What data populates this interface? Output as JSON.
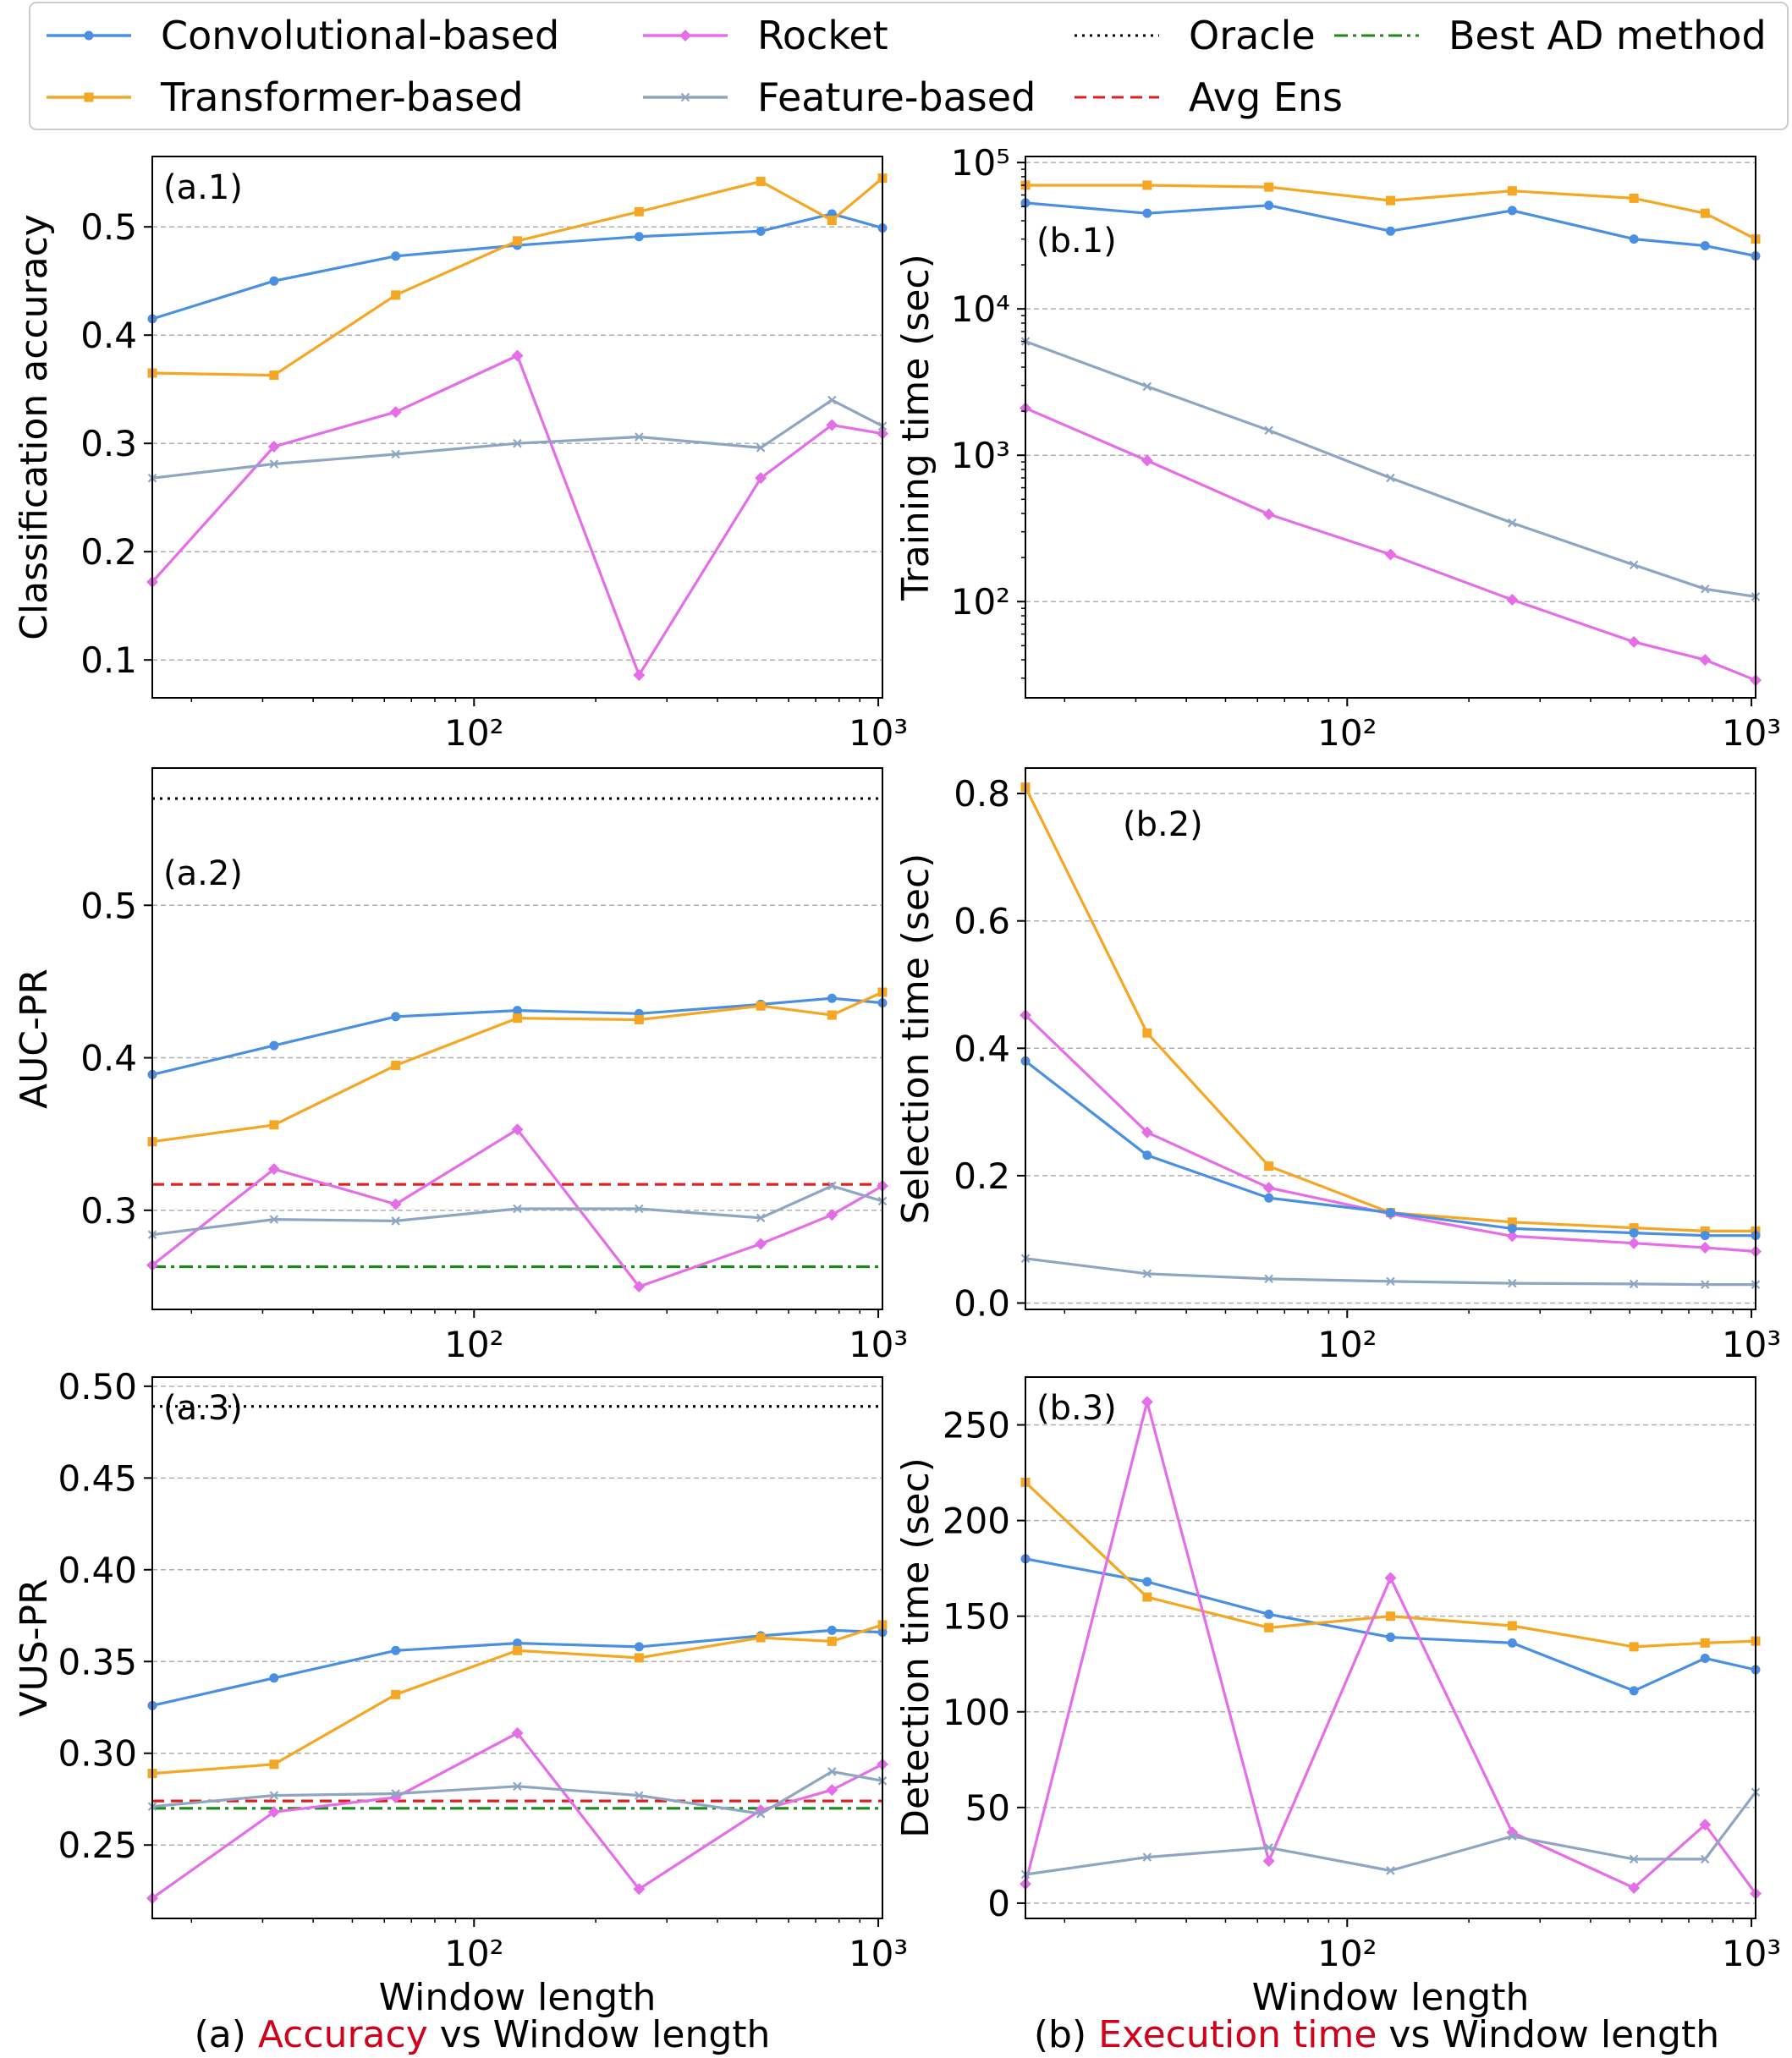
{
  "colors": {
    "conv": "#4a90e2",
    "trans": "#f5a623",
    "rocket": "#e56ee8",
    "feature": "#8ea6c2",
    "oracle": "#000000",
    "best": "#1a8a1a",
    "avg": "#e02020",
    "caption_accent": "#d0021b",
    "grid": "#b0b0b0"
  },
  "legend": {
    "placement": "top",
    "entries": [
      {
        "key": "conv",
        "label": "Convolutional-based",
        "marker": "circle",
        "style": "solid"
      },
      {
        "key": "trans",
        "label": "Transformer-based",
        "marker": "square",
        "style": "solid"
      },
      {
        "key": "rocket",
        "label": "Rocket",
        "marker": "diamond",
        "style": "solid"
      },
      {
        "key": "feature",
        "label": "Feature-based",
        "marker": "x",
        "style": "solid"
      },
      {
        "key": "oracle",
        "label": "Oracle",
        "marker": "",
        "style": "dotted"
      },
      {
        "key": "avg",
        "label": "Avg Ens",
        "marker": "",
        "style": "dashed"
      },
      {
        "key": "best",
        "label": "Best AD method",
        "marker": "",
        "style": "dashdot"
      }
    ]
  },
  "captions": {
    "a_prefix": "(a) ",
    "a_accent": "Accuracy",
    "a_suffix": " vs Window length",
    "b_prefix": "(b) ",
    "b_accent": "Execution time",
    "b_suffix": " vs Window length"
  },
  "chart_data": [
    {
      "id": "a1",
      "panel_label": "(a.1)",
      "type": "line",
      "xscale": "log",
      "yscale": "linear",
      "x": [
        16,
        32,
        64,
        128,
        256,
        512,
        768,
        1024
      ],
      "xlim": [
        16,
        1024
      ],
      "ylim": [
        0.065,
        0.565
      ],
      "xticks": [
        100,
        1000
      ],
      "xticklabels": [
        "10²",
        "10³"
      ],
      "yticks": [
        0.1,
        0.2,
        0.3,
        0.4,
        0.5
      ],
      "yticklabels": [
        "0.1",
        "0.2",
        "0.3",
        "0.4",
        "0.5"
      ],
      "xlabel": "",
      "ylabel": "Classification accuracy",
      "series": [
        {
          "key": "conv",
          "name": "Convolutional-based",
          "values": [
            0.415,
            0.45,
            0.473,
            0.483,
            0.491,
            0.496,
            0.512,
            0.499
          ]
        },
        {
          "key": "trans",
          "name": "Transformer-based",
          "values": [
            0.365,
            0.363,
            0.437,
            0.487,
            0.514,
            0.542,
            0.506,
            0.545
          ]
        },
        {
          "key": "rocket",
          "name": "Rocket",
          "values": [
            0.172,
            0.297,
            0.329,
            0.381,
            0.086,
            0.268,
            0.317,
            0.309
          ]
        },
        {
          "key": "feature",
          "name": "Feature-based",
          "values": [
            0.268,
            0.281,
            0.29,
            0.3,
            0.306,
            0.296,
            0.34,
            0.316
          ]
        }
      ],
      "hlines": []
    },
    {
      "id": "b1",
      "panel_label": "(b.1)",
      "type": "line",
      "xscale": "log",
      "yscale": "log",
      "x": [
        16,
        32,
        64,
        128,
        256,
        512,
        768,
        1024
      ],
      "xlim": [
        16,
        1024
      ],
      "ylim": [
        22,
        110000
      ],
      "xticks": [
        100,
        1000
      ],
      "xticklabels": [
        "10²",
        "10³"
      ],
      "yticks": [
        100,
        1000,
        10000,
        100000
      ],
      "yticklabels": [
        "10²",
        "10³",
        "10⁴",
        "10⁵"
      ],
      "xlabel": "",
      "ylabel": "Training time (sec)",
      "series": [
        {
          "key": "conv",
          "name": "Convolutional-based",
          "values": [
            53000,
            45000,
            51000,
            34000,
            47000,
            30000,
            27000,
            23000
          ]
        },
        {
          "key": "trans",
          "name": "Transformer-based",
          "values": [
            70000,
            70000,
            68000,
            55000,
            64000,
            57000,
            45000,
            30000
          ]
        },
        {
          "key": "rocket",
          "name": "Rocket",
          "values": [
            2100,
            920,
            395,
            210,
            103,
            53,
            40,
            29
          ]
        },
        {
          "key": "feature",
          "name": "Feature-based",
          "values": [
            6000,
            2950,
            1480,
            700,
            345,
            178,
            122,
            108
          ]
        }
      ],
      "hlines": []
    },
    {
      "id": "a2",
      "panel_label": "(a.2)",
      "type": "line",
      "xscale": "log",
      "yscale": "linear",
      "x": [
        16,
        32,
        64,
        128,
        256,
        512,
        768,
        1024
      ],
      "xlim": [
        16,
        1024
      ],
      "ylim": [
        0.235,
        0.59
      ],
      "xticks": [
        100,
        1000
      ],
      "xticklabels": [
        "10²",
        "10³"
      ],
      "yticks": [
        0.3,
        0.4,
        0.5
      ],
      "yticklabels": [
        "0.3",
        "0.4",
        "0.5"
      ],
      "xlabel": "",
      "ylabel": "AUC-PR",
      "series": [
        {
          "key": "conv",
          "name": "Convolutional-based",
          "values": [
            0.389,
            0.408,
            0.427,
            0.431,
            0.429,
            0.435,
            0.439,
            0.436
          ]
        },
        {
          "key": "trans",
          "name": "Transformer-based",
          "values": [
            0.345,
            0.356,
            0.395,
            0.426,
            0.425,
            0.434,
            0.428,
            0.443
          ]
        },
        {
          "key": "rocket",
          "name": "Rocket",
          "values": [
            0.264,
            0.327,
            0.304,
            0.353,
            0.25,
            0.278,
            0.297,
            0.316
          ]
        },
        {
          "key": "feature",
          "name": "Feature-based",
          "values": [
            0.284,
            0.294,
            0.293,
            0.301,
            0.301,
            0.295,
            0.316,
            0.306
          ]
        }
      ],
      "hlines": [
        {
          "key": "oracle",
          "name": "Oracle",
          "value": 0.57
        },
        {
          "key": "avg",
          "name": "Avg Ens",
          "value": 0.317
        },
        {
          "key": "best",
          "name": "Best AD method",
          "value": 0.263
        }
      ]
    },
    {
      "id": "b2",
      "panel_label": "(b.2)",
      "type": "line",
      "xscale": "log",
      "yscale": "linear",
      "x": [
        16,
        32,
        64,
        128,
        256,
        512,
        768,
        1024
      ],
      "xlim": [
        16,
        1024
      ],
      "ylim": [
        -0.01,
        0.84
      ],
      "xticks": [
        100,
        1000
      ],
      "xticklabels": [
        "10²",
        "10³"
      ],
      "yticks": [
        0.0,
        0.2,
        0.4,
        0.6,
        0.8
      ],
      "yticklabels": [
        "0.0",
        "0.2",
        "0.4",
        "0.6",
        "0.8"
      ],
      "xlabel": "",
      "ylabel": "Selection time (sec)",
      "series": [
        {
          "key": "trans",
          "name": "Transformer-based",
          "values": [
            0.81,
            0.424,
            0.215,
            0.142,
            0.127,
            0.118,
            0.113,
            0.113
          ]
        },
        {
          "key": "rocket",
          "name": "Rocket",
          "values": [
            0.452,
            0.268,
            0.181,
            0.14,
            0.105,
            0.094,
            0.087,
            0.081
          ]
        },
        {
          "key": "conv",
          "name": "Convolutional-based",
          "values": [
            0.38,
            0.232,
            0.165,
            0.142,
            0.117,
            0.11,
            0.106,
            0.106
          ]
        },
        {
          "key": "feature",
          "name": "Feature-based",
          "values": [
            0.07,
            0.046,
            0.038,
            0.034,
            0.031,
            0.03,
            0.029,
            0.029
          ]
        }
      ],
      "hlines": []
    },
    {
      "id": "a3",
      "panel_label": "(a.3)",
      "type": "line",
      "xscale": "log",
      "yscale": "linear",
      "x": [
        16,
        32,
        64,
        128,
        256,
        512,
        768,
        1024
      ],
      "xlim": [
        16,
        1024
      ],
      "ylim": [
        0.21,
        0.505
      ],
      "xticks": [
        100,
        1000
      ],
      "xticklabels": [
        "10²",
        "10³"
      ],
      "yticks": [
        0.25,
        0.3,
        0.35,
        0.4,
        0.45,
        0.5
      ],
      "yticklabels": [
        "0.25",
        "0.30",
        "0.35",
        "0.40",
        "0.45",
        "0.50"
      ],
      "xlabel": "Window length",
      "ylabel": "VUS-PR",
      "series": [
        {
          "key": "conv",
          "name": "Convolutional-based",
          "values": [
            0.326,
            0.341,
            0.356,
            0.36,
            0.358,
            0.364,
            0.367,
            0.366
          ]
        },
        {
          "key": "trans",
          "name": "Transformer-based",
          "values": [
            0.289,
            0.294,
            0.332,
            0.356,
            0.352,
            0.363,
            0.361,
            0.37
          ]
        },
        {
          "key": "rocket",
          "name": "Rocket",
          "values": [
            0.221,
            0.268,
            0.276,
            0.311,
            0.226,
            0.269,
            0.28,
            0.294
          ]
        },
        {
          "key": "feature",
          "name": "Feature-based",
          "values": [
            0.271,
            0.277,
            0.278,
            0.282,
            0.277,
            0.267,
            0.29,
            0.285
          ]
        }
      ],
      "hlines": [
        {
          "key": "oracle",
          "name": "Oracle",
          "value": 0.489
        },
        {
          "key": "avg",
          "name": "Avg Ens",
          "value": 0.274
        },
        {
          "key": "best",
          "name": "Best AD method",
          "value": 0.27
        }
      ]
    },
    {
      "id": "b3",
      "panel_label": "(b.3)",
      "type": "line",
      "xscale": "log",
      "yscale": "linear",
      "x": [
        16,
        32,
        64,
        128,
        256,
        512,
        768,
        1024
      ],
      "xlim": [
        16,
        1024
      ],
      "ylim": [
        -8,
        275
      ],
      "xticks": [
        100,
        1000
      ],
      "xticklabels": [
        "10²",
        "10³"
      ],
      "yticks": [
        0,
        50,
        100,
        150,
        200,
        250
      ],
      "yticklabels": [
        "0",
        "50",
        "100",
        "150",
        "200",
        "250"
      ],
      "xlabel": "Window length",
      "ylabel": "Detection time (sec)",
      "series": [
        {
          "key": "conv",
          "name": "Convolutional-based",
          "values": [
            180,
            168,
            151,
            139,
            136,
            111,
            128,
            122
          ]
        },
        {
          "key": "trans",
          "name": "Transformer-based",
          "values": [
            220,
            160,
            144,
            150,
            145,
            134,
            136,
            137
          ]
        },
        {
          "key": "rocket",
          "name": "Rocket",
          "values": [
            10,
            262,
            22,
            170,
            37,
            8,
            41,
            5
          ]
        },
        {
          "key": "feature",
          "name": "Feature-based",
          "values": [
            15,
            24,
            29,
            17,
            35,
            23,
            23,
            58
          ]
        }
      ],
      "hlines": []
    }
  ]
}
